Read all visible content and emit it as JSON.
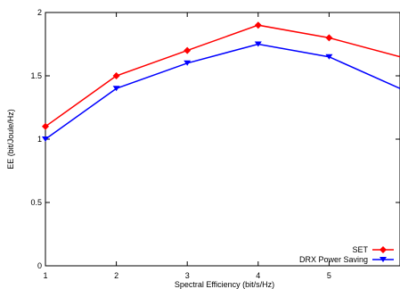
{
  "chart_data": {
    "type": "line",
    "xlabel": "Spectral Efficiency (bit/s/Hz)",
    "ylabel": "EE (bit/Joule/Hz)",
    "xlim": [
      1,
      6
    ],
    "ylim": [
      0,
      2
    ],
    "x_ticks": [
      "1",
      "2",
      "3",
      "4",
      "5"
    ],
    "y_ticks": [
      "0",
      "0.5",
      "1",
      "1.5",
      "2"
    ],
    "x": [
      1,
      2,
      3,
      4,
      5,
      6
    ],
    "series": [
      {
        "name": "SET",
        "values": [
          1.1,
          1.5,
          1.7,
          1.9,
          1.8,
          1.65
        ],
        "color": "#ff0000",
        "marker": "diamond"
      },
      {
        "name": "DRX Power Saving",
        "values": [
          1.0,
          1.4,
          1.6,
          1.75,
          1.65,
          1.4
        ],
        "color": "#0000ff",
        "marker": "triangle-down"
      }
    ],
    "legend_position": "bottom-right",
    "grid": false
  }
}
